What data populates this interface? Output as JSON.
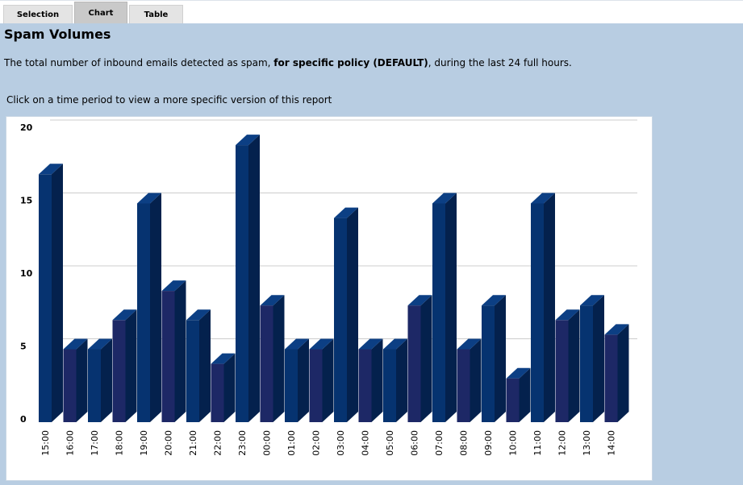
{
  "tabs": [
    {
      "label": "Selection",
      "active": false
    },
    {
      "label": "Chart",
      "active": true
    },
    {
      "label": "Table",
      "active": false
    }
  ],
  "report": {
    "title": "Spam Volumes",
    "description_prefix": "The total number of inbound emails detected as spam, ",
    "description_bold": "for specific policy (DEFAULT)",
    "description_suffix": ", during the last 24 full hours.",
    "hint": "Click on a time period to view a more specific version of this report"
  },
  "colors": {
    "panel_background": "#b8cde2",
    "bar_front_a": "#063370",
    "bar_front_b": "#1d2866",
    "bar_side": "#04214d",
    "bar_top": "#0c3f84",
    "gridline": "#cccccc"
  },
  "chart_data": {
    "type": "bar",
    "categories": [
      "15:00",
      "16:00",
      "17:00",
      "18:00",
      "19:00",
      "20:00",
      "21:00",
      "22:00",
      "23:00",
      "00:00",
      "01:00",
      "02:00",
      "03:00",
      "04:00",
      "05:00",
      "06:00",
      "07:00",
      "08:00",
      "09:00",
      "10:00",
      "11:00",
      "12:00",
      "13:00",
      "14:00"
    ],
    "values": [
      17,
      5,
      5,
      7,
      15,
      9,
      7,
      4,
      19,
      8,
      5,
      5,
      14,
      5,
      5,
      8,
      15,
      5,
      8,
      3,
      15,
      7,
      8,
      6
    ],
    "y_ticks": [
      "0",
      "5",
      "10",
      "15",
      "20"
    ],
    "ylim": [
      0,
      20
    ],
    "grid": true,
    "style": "3d",
    "legend": "none"
  }
}
